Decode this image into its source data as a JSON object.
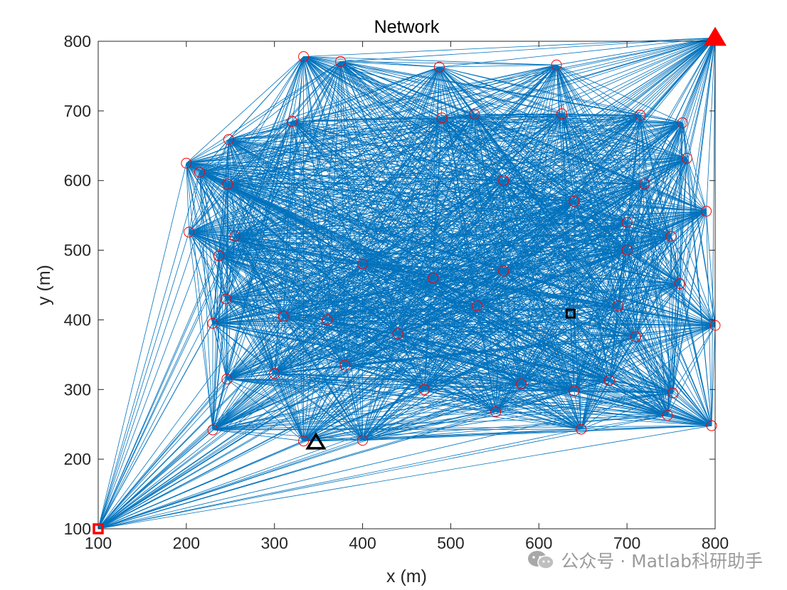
{
  "chart_data": {
    "type": "scatter",
    "title": "Network",
    "xlabel": "x (m)",
    "ylabel": "y (m)",
    "xlim": [
      100,
      800
    ],
    "ylim": [
      100,
      800
    ],
    "xticks": [
      100,
      200,
      300,
      400,
      500,
      600,
      700,
      800
    ],
    "yticks": [
      100,
      200,
      300,
      400,
      500,
      600,
      700,
      800
    ],
    "grid": false,
    "series": [
      {
        "name": "nodes",
        "marker": "circle",
        "color": "#ff0000",
        "points": [
          [
            333,
            778
          ],
          [
            375,
            771
          ],
          [
            487,
            763
          ],
          [
            620,
            766
          ],
          [
            320,
            685
          ],
          [
            248,
            659
          ],
          [
            490,
            690
          ],
          [
            527,
            695
          ],
          [
            626,
            696
          ],
          [
            763,
            683
          ],
          [
            715,
            694
          ],
          [
            200,
            625
          ],
          [
            215,
            612
          ],
          [
            247,
            595
          ],
          [
            768,
            632
          ],
          [
            790,
            556
          ],
          [
            720,
            595
          ],
          [
            203,
            526
          ],
          [
            255,
            520
          ],
          [
            560,
            600
          ],
          [
            640,
            570
          ],
          [
            700,
            540
          ],
          [
            237,
            492
          ],
          [
            400,
            480
          ],
          [
            480,
            460
          ],
          [
            560,
            470
          ],
          [
            700,
            500
          ],
          [
            750,
            520
          ],
          [
            245,
            430
          ],
          [
            310,
            405
          ],
          [
            230,
            395
          ],
          [
            360,
            400
          ],
          [
            440,
            380
          ],
          [
            530,
            420
          ],
          [
            760,
            452
          ],
          [
            800,
            392
          ],
          [
            710,
            376
          ],
          [
            690,
            420
          ],
          [
            246,
            315
          ],
          [
            300,
            323
          ],
          [
            380,
            335
          ],
          [
            470,
            300
          ],
          [
            580,
            308
          ],
          [
            640,
            298
          ],
          [
            680,
            313
          ],
          [
            752,
            295
          ],
          [
            230,
            242
          ],
          [
            333,
            226
          ],
          [
            400,
            227
          ],
          [
            551,
            268
          ],
          [
            648,
            243
          ],
          [
            746,
            263
          ],
          [
            796,
            248
          ]
        ]
      },
      {
        "name": "source-node",
        "marker": "square",
        "color": "#ff0000",
        "points": [
          [
            100,
            100
          ]
        ]
      },
      {
        "name": "sink-node",
        "marker": "triangle",
        "color": "#ff0000",
        "points": [
          [
            800,
            805
          ]
        ]
      },
      {
        "name": "target-square",
        "marker": "square",
        "color": "#000000",
        "points": [
          [
            636,
            409
          ]
        ]
      },
      {
        "name": "target-triangle",
        "marker": "triangle",
        "color": "#000000",
        "points": [
          [
            347,
            224
          ]
        ]
      }
    ],
    "links": {
      "color": "#0072bd",
      "description": "all node pairs within range are connected"
    }
  },
  "watermark": {
    "text": "公众号 · Matlab科研助手",
    "icon": "wechat-icon"
  }
}
